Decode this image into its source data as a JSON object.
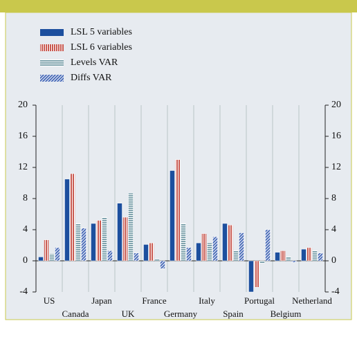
{
  "chart_data": {
    "type": "bar",
    "categories": [
      "US",
      "Canada",
      "Japan",
      "UK",
      "France",
      "Germany",
      "Italy",
      "Spain",
      "Portugal",
      "Belgium",
      "Netherland"
    ],
    "series": [
      {
        "name": "LSL 5 variables",
        "color": "#1c4f9e",
        "hatch": "solid",
        "values": [
          0.5,
          10.5,
          4.8,
          7.4,
          2.1,
          11.6,
          2.3,
          4.8,
          -4.0,
          1.1,
          1.5
        ]
      },
      {
        "name": "LSL 6 variables",
        "color": "#c8584f",
        "hatch": "vertical",
        "values": [
          2.7,
          11.2,
          5.2,
          5.6,
          2.3,
          13.0,
          3.5,
          4.6,
          -3.4,
          1.3,
          1.7
        ]
      },
      {
        "name": "Levels VAR",
        "color": "#7fa3ad",
        "hatch": "horizontal",
        "values": [
          0.9,
          4.8,
          5.6,
          8.7,
          0.2,
          4.8,
          2.3,
          1.3,
          -0.3,
          0.5,
          1.3
        ]
      },
      {
        "name": "Diffs VAR",
        "color": "#4a6cb8",
        "hatch": "diagonal",
        "values": [
          1.7,
          4.2,
          1.3,
          1.0,
          -1.0,
          1.7,
          3.1,
          3.6,
          4.0,
          -0.2,
          1.0
        ]
      }
    ],
    "ylim": [
      -4,
      20
    ],
    "yticks": [
      -4,
      0,
      4,
      8,
      12,
      16,
      20
    ],
    "y2lim": [
      -4,
      20
    ],
    "y2ticks": [
      -4,
      0,
      4,
      8,
      12,
      16,
      20
    ],
    "grid": true,
    "legend": "top-left"
  }
}
